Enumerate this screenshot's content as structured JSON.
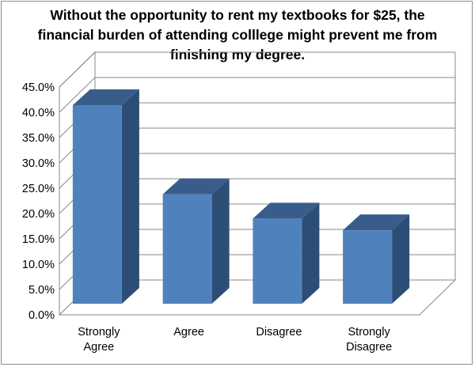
{
  "chart_data": {
    "type": "bar",
    "title_lines": [
      "Without the opportunity to rent my textbooks for $25, the",
      "financial burden of attending colllege might prevent me from",
      "finishing my degree."
    ],
    "categories": [
      [
        "Strongly",
        "Agree"
      ],
      [
        "Agree"
      ],
      [
        "Disagree"
      ],
      [
        "Strongly",
        "Disagree"
      ]
    ],
    "values": [
      41.4,
      23.8,
      19.0,
      16.7
    ],
    "ylim": [
      0,
      45
    ],
    "y_tick_step": 5,
    "y_tick_labels": [
      "0.0%",
      "5.0%",
      "10.0%",
      "15.0%",
      "20.0%",
      "25.0%",
      "30.0%",
      "35.0%",
      "40.0%",
      "45.0%"
    ],
    "style": "3d-column",
    "grid": true,
    "legend": "none",
    "colors": {
      "bar_front": "#4f81bd",
      "bar_top": "#385d8a",
      "bar_side": "#2c4d75",
      "grid": "#888888",
      "wall": "#ffffff"
    }
  }
}
